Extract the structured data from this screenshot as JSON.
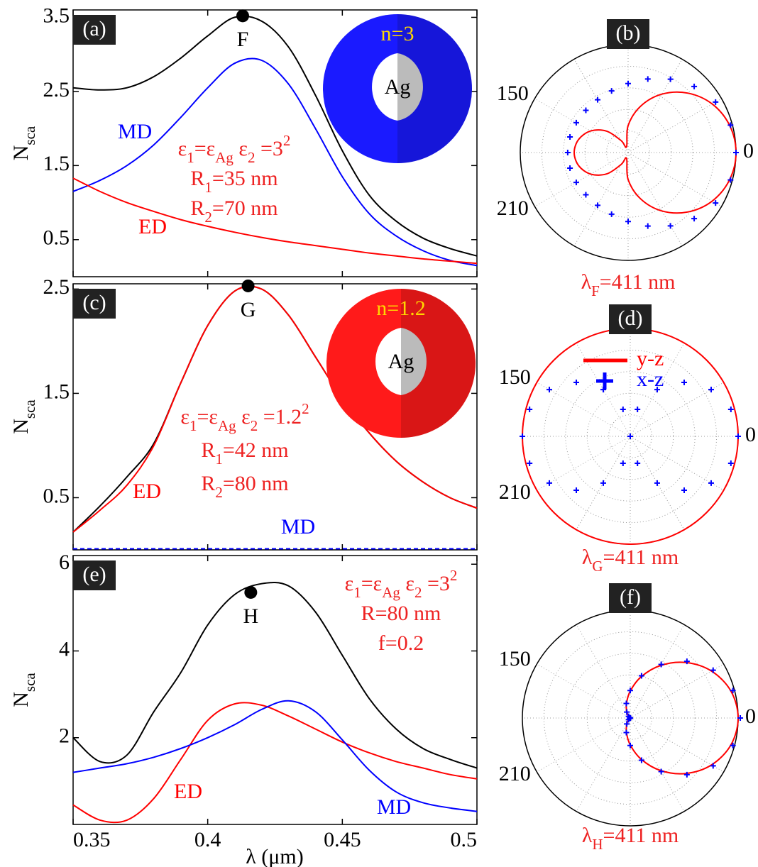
{
  "chart_data": [
    {
      "type": "line",
      "panel": "(a)",
      "ylabel": [
        {
          "text": "N"
        },
        {
          "sub": "sca"
        }
      ],
      "x": [
        0.35,
        0.36,
        0.37,
        0.38,
        0.39,
        0.4,
        0.41,
        0.42,
        0.43,
        0.44,
        0.45,
        0.46,
        0.47,
        0.48,
        0.49,
        0.5
      ],
      "xlim": [
        0.35,
        0.5
      ],
      "xticks": [
        0.35,
        0.4,
        0.45,
        0.5
      ],
      "xtick_labels": false,
      "ylim": [
        0,
        3.6
      ],
      "yticks": [
        0.5,
        1.5,
        2.5,
        3.5
      ],
      "series": [
        {
          "color": "#000000",
          "values": [
            2.55,
            2.52,
            2.55,
            2.7,
            2.95,
            3.25,
            3.5,
            3.45,
            3.1,
            2.45,
            1.7,
            1.1,
            0.75,
            0.52,
            0.38,
            0.28
          ]
        },
        {
          "name": "MD",
          "color": "#0000ff",
          "values": [
            1.15,
            1.3,
            1.5,
            1.78,
            2.15,
            2.55,
            2.88,
            2.92,
            2.6,
            2.0,
            1.35,
            0.85,
            0.55,
            0.35,
            0.22,
            0.15
          ]
        },
        {
          "name": "ED",
          "color": "#ff0000",
          "values": [
            1.33,
            1.15,
            1.0,
            0.88,
            0.77,
            0.68,
            0.6,
            0.53,
            0.47,
            0.42,
            0.37,
            0.32,
            0.28,
            0.24,
            0.21,
            0.18
          ]
        }
      ],
      "points": [
        {
          "label": "F",
          "x": 0.413,
          "y": 3.52
        }
      ],
      "annotation": {
        "color": "#ee2222",
        "lines": [
          [
            {
              "text": "ε"
            },
            {
              "sub": "1"
            },
            {
              "text": "=ε"
            },
            {
              "sub": "Ag"
            },
            {
              "text": " ε"
            },
            {
              "sub": "2"
            },
            {
              "text": " =3"
            },
            {
              "sup": "2"
            }
          ],
          [
            {
              "text": "R"
            },
            {
              "sub": "1"
            },
            {
              "text": "=35 nm"
            }
          ],
          [
            {
              "text": "R"
            },
            {
              "sub": "2"
            },
            {
              "text": "=70 nm"
            }
          ]
        ]
      },
      "inset": {
        "color": "#1a1aff",
        "label": "n=3",
        "core": "Ag"
      }
    },
    {
      "type": "polar",
      "panel": "(b)",
      "theta": [
        0,
        15,
        30,
        45,
        60,
        75,
        90,
        105,
        120,
        135,
        150,
        165,
        180,
        195,
        210,
        225,
        240,
        255,
        270,
        285,
        300,
        315,
        330,
        345
      ],
      "rlim": [
        0,
        1
      ],
      "r_grid": [
        0.2,
        0.4,
        0.6,
        0.8
      ],
      "theta_grid": [
        0,
        30,
        60,
        90,
        120,
        150,
        180,
        210,
        240,
        270,
        300,
        330
      ],
      "thetaticks": [
        0,
        150,
        210
      ],
      "series": [
        {
          "color": "#ff0000",
          "marker": "line",
          "values": [
            1.0,
            0.974,
            0.9,
            0.78,
            0.625,
            0.444,
            0.25,
            0.056,
            0.125,
            0.28,
            0.4,
            0.474,
            0.5,
            0.474,
            0.4,
            0.28,
            0.125,
            0.056,
            0.25,
            0.444,
            0.625,
            0.78,
            0.9,
            0.974
          ]
        },
        {
          "color": "#0000ff",
          "marker": "plus",
          "values": [
            1.0,
            0.983,
            0.936,
            0.866,
            0.785,
            0.706,
            0.64,
            0.592,
            0.565,
            0.554,
            0.555,
            0.558,
            0.56,
            0.558,
            0.555,
            0.554,
            0.565,
            0.592,
            0.64,
            0.706,
            0.785,
            0.866,
            0.936,
            0.983
          ]
        }
      ],
      "caption": {
        "color": "#ee2222",
        "text": [
          {
            "text": "λ"
          },
          {
            "sub": "F"
          },
          {
            "text": "=411 nm"
          }
        ]
      }
    },
    {
      "type": "line",
      "panel": "(c)",
      "ylabel": [
        {
          "text": "N"
        },
        {
          "sub": "sca"
        }
      ],
      "x": [
        0.35,
        0.36,
        0.37,
        0.38,
        0.39,
        0.4,
        0.41,
        0.42,
        0.43,
        0.44,
        0.45,
        0.46,
        0.47,
        0.48,
        0.49,
        0.5
      ],
      "xlim": [
        0.35,
        0.5
      ],
      "xticks": [
        0.35,
        0.4,
        0.45,
        0.5
      ],
      "xtick_labels": false,
      "ylim": [
        0,
        2.55
      ],
      "yticks": [
        0.5,
        1.5,
        2.5
      ],
      "series": [
        {
          "color": "#000000",
          "values": [
            0.17,
            0.42,
            0.7,
            1.02,
            1.6,
            2.15,
            2.48,
            2.5,
            2.25,
            1.85,
            1.45,
            1.12,
            0.85,
            0.65,
            0.5,
            0.4
          ]
        },
        {
          "name": "ED",
          "color": "#ff0000",
          "values": [
            0.17,
            0.38,
            0.62,
            1.0,
            1.6,
            2.15,
            2.48,
            2.5,
            2.25,
            1.85,
            1.45,
            1.12,
            0.85,
            0.65,
            0.5,
            0.4
          ]
        },
        {
          "name": "MD",
          "color": "#0000ff",
          "dash": true,
          "values": [
            0.01,
            0.01,
            0.01,
            0.01,
            0.01,
            0.01,
            0.01,
            0.01,
            0.01,
            0.01,
            0.01,
            0.01,
            0.01,
            0.01,
            0.01,
            0.01
          ]
        }
      ],
      "points": [
        {
          "label": "G",
          "x": 0.415,
          "y": 2.53
        }
      ],
      "annotation": {
        "color": "#ee2222",
        "lines": [
          [
            {
              "text": "ε"
            },
            {
              "sub": "1"
            },
            {
              "text": "=ε"
            },
            {
              "sub": "Ag"
            },
            {
              "text": " ε"
            },
            {
              "sub": "2"
            },
            {
              "text": " =1.2"
            },
            {
              "sup": "2"
            }
          ],
          [
            {
              "text": "R"
            },
            {
              "sub": "1"
            },
            {
              "text": "=42 nm"
            }
          ],
          [
            {
              "text": "R"
            },
            {
              "sub": "2"
            },
            {
              "text": "=80 nm"
            }
          ]
        ]
      },
      "inset": {
        "color": "#ff1a1a",
        "label": "n=1.2",
        "core": "Ag"
      }
    },
    {
      "type": "polar",
      "panel": "(d)",
      "theta": [
        0,
        15,
        30,
        45,
        60,
        75,
        90,
        105,
        120,
        135,
        150,
        165,
        180,
        195,
        210,
        225,
        240,
        255,
        270,
        285,
        300,
        315,
        330,
        345
      ],
      "rlim": [
        0,
        1
      ],
      "r_grid": [
        0.2,
        0.4,
        0.6,
        0.8
      ],
      "theta_grid": [
        0,
        30,
        60,
        90,
        120,
        150,
        180,
        210,
        240,
        270,
        300,
        330
      ],
      "thetaticks": [
        0,
        150,
        210
      ],
      "legend": true,
      "series": [
        {
          "name": "y-z",
          "color": "#ff0000",
          "marker": "line",
          "values": [
            1,
            1,
            1,
            1,
            1,
            1,
            1,
            1,
            1,
            1,
            1,
            1,
            1,
            1,
            1,
            1,
            1,
            1,
            1,
            1,
            1,
            1,
            1,
            1
          ]
        },
        {
          "name": "x-z",
          "color": "#0000ff",
          "marker": "plus",
          "values": [
            1,
            0.966,
            0.866,
            0.707,
            0.5,
            0.259,
            0,
            0.259,
            0.5,
            0.707,
            0.866,
            0.966,
            1,
            0.966,
            0.866,
            0.707,
            0.5,
            0.259,
            0,
            0.259,
            0.5,
            0.707,
            0.866,
            0.966
          ]
        }
      ],
      "caption": {
        "color": "#ee2222",
        "text": [
          {
            "text": "λ"
          },
          {
            "sub": "G"
          },
          {
            "text": "=411 nm"
          }
        ]
      }
    },
    {
      "type": "line",
      "panel": "(e)",
      "ylabel": [
        {
          "text": "N"
        },
        {
          "sub": "sca"
        }
      ],
      "xlabel": "λ (μm)",
      "x": [
        0.35,
        0.36,
        0.37,
        0.38,
        0.39,
        0.4,
        0.41,
        0.42,
        0.43,
        0.44,
        0.45,
        0.46,
        0.47,
        0.48,
        0.49,
        0.5
      ],
      "xlim": [
        0.35,
        0.5
      ],
      "xticks": [
        0.35,
        0.4,
        0.45,
        0.5
      ],
      "xtick_labels": true,
      "ylim": [
        0,
        6.2
      ],
      "yticks": [
        2,
        4,
        6
      ],
      "series": [
        {
          "color": "#000000",
          "values": [
            2.0,
            1.45,
            1.6,
            2.6,
            3.5,
            4.6,
            5.3,
            5.55,
            5.5,
            4.9,
            3.9,
            2.9,
            2.2,
            1.75,
            1.5,
            1.3
          ]
        },
        {
          "name": "ED",
          "color": "#ff0000",
          "values": [
            0.45,
            0.1,
            0.1,
            0.6,
            1.5,
            2.4,
            2.78,
            2.75,
            2.5,
            2.2,
            1.9,
            1.65,
            1.45,
            1.3,
            1.15,
            1.05
          ]
        },
        {
          "name": "MD",
          "color": "#0000ff",
          "values": [
            1.2,
            1.3,
            1.4,
            1.55,
            1.75,
            2.0,
            2.3,
            2.65,
            2.85,
            2.6,
            1.95,
            1.25,
            0.75,
            0.5,
            0.38,
            0.3
          ]
        }
      ],
      "points": [
        {
          "label": "H",
          "x": 0.416,
          "y": 5.35
        }
      ],
      "annotation": {
        "color": "#ee2222",
        "lines": [
          [
            {
              "text": "ε"
            },
            {
              "sub": "1"
            },
            {
              "text": "=ε"
            },
            {
              "sub": "Ag"
            },
            {
              "text": " ε"
            },
            {
              "sub": "2"
            },
            {
              "text": " =3"
            },
            {
              "sup": "2"
            }
          ],
          [
            {
              "text": "R=80 nm"
            }
          ],
          [
            {
              "text": "f=0.2"
            }
          ]
        ]
      }
    },
    {
      "type": "polar",
      "panel": "(f)",
      "theta": [
        0,
        15,
        30,
        45,
        60,
        75,
        90,
        105,
        120,
        135,
        150,
        165,
        180,
        195,
        210,
        225,
        240,
        255,
        270,
        285,
        300,
        315,
        330,
        345
      ],
      "rlim": [
        0,
        1
      ],
      "r_grid": [
        0.2,
        0.4,
        0.6,
        0.8
      ],
      "theta_grid": [
        0,
        30,
        60,
        90,
        120,
        150,
        180,
        210,
        240,
        270,
        300,
        330
      ],
      "thetaticks": [
        0,
        150,
        210
      ],
      "series": [
        {
          "color": "#ff0000",
          "marker": "line",
          "values": [
            1,
            0.966,
            0.87,
            0.728,
            0.5625,
            0.397,
            0.25,
            0.137,
            0.0625,
            0.0215,
            0.0045,
            0.0003,
            0,
            0.0003,
            0.0045,
            0.0215,
            0.0625,
            0.137,
            0.25,
            0.397,
            0.5625,
            0.728,
            0.87,
            0.966
          ]
        },
        {
          "color": "#0000ff",
          "marker": "plus",
          "values": [
            1.02,
            0.985,
            0.887,
            0.743,
            0.574,
            0.405,
            0.255,
            0.14,
            0.064,
            0.022,
            0.005,
            0,
            0,
            0,
            0.005,
            0.022,
            0.064,
            0.14,
            0.255,
            0.405,
            0.574,
            0.743,
            0.887,
            0.985
          ]
        }
      ],
      "caption": {
        "color": "#ee2222",
        "text": [
          {
            "text": "λ"
          },
          {
            "sub": "H"
          },
          {
            "text": "=411 nm"
          }
        ]
      }
    }
  ]
}
